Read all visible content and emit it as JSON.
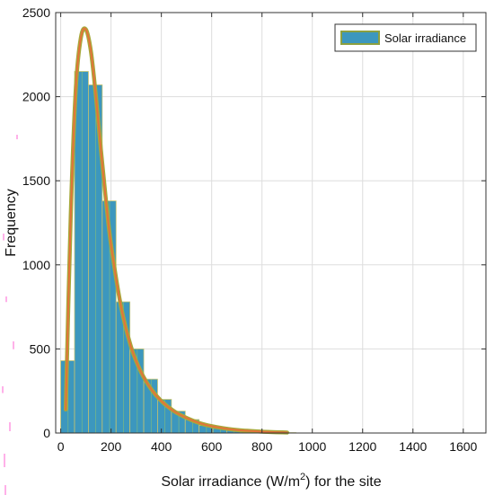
{
  "chart_data": {
    "type": "bar",
    "xlabel_main": "Solar irradiance (W/m",
    "xlabel_sup": "2",
    "xlabel_tail": ") for the site",
    "ylabel": "Frequency",
    "legend": {
      "entries": [
        "Solar irradiance"
      ],
      "placement": "top-right"
    },
    "grid": true,
    "xlim": [
      -20,
      1690
    ],
    "ylim": [
      0,
      2500
    ],
    "xticks": [
      0,
      200,
      400,
      600,
      800,
      1000,
      1200,
      1400,
      1600
    ],
    "yticks": [
      0,
      500,
      1000,
      1500,
      2000,
      2500
    ],
    "histogram": {
      "bin_edges": [
        0,
        55,
        110,
        165,
        220,
        275,
        330,
        385,
        440,
        495,
        550,
        605,
        660,
        715,
        770,
        825,
        880,
        935
      ],
      "counts": [
        430,
        2150,
        2070,
        1380,
        780,
        500,
        320,
        200,
        130,
        80,
        45,
        28,
        18,
        10,
        6,
        3,
        2
      ]
    },
    "fit_curve": {
      "x": [
        20,
        40,
        60,
        80,
        100,
        120,
        140,
        160,
        180,
        200,
        240,
        280,
        320,
        360,
        400,
        450,
        500,
        560,
        620,
        700,
        800,
        900
      ],
      "y": [
        140,
        1300,
        2050,
        2350,
        2400,
        2270,
        2000,
        1680,
        1380,
        1120,
        750,
        510,
        360,
        260,
        190,
        130,
        90,
        55,
        35,
        18,
        8,
        3
      ]
    },
    "colors": {
      "bar_fill": "#3c97be",
      "bar_edge": "#c4c26f",
      "bin_lines": "#a5d05c",
      "fit_outer": "#a6a93a",
      "fit_inner": "#e3733a",
      "legend_swatch": "#3c97be",
      "legend_border": "#8ca040",
      "grid": "#dddddd",
      "axis": "#333333",
      "artifact": "#ff1fbf"
    }
  }
}
